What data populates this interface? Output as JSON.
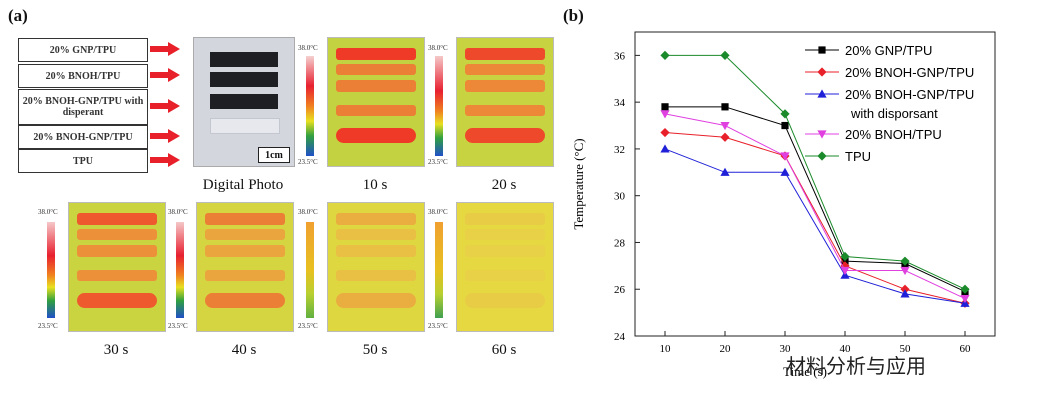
{
  "panel_a": {
    "label": "(a)",
    "sample_labels": [
      "20% GNP/TPU",
      "20% BNOH/TPU",
      "20% BNOH-GNP/TPU with disperant",
      "20% BNOH-GNP/TPU",
      "TPU"
    ],
    "photo_caption": "Digital Photo",
    "scale_bar": "1cm",
    "colorbar_max": "38.0°C",
    "colorbar_min": "23.5°C",
    "frames": [
      {
        "caption": "10 s",
        "level": 1.0
      },
      {
        "caption": "20 s",
        "level": 0.9
      },
      {
        "caption": "30 s",
        "level": 0.8
      },
      {
        "caption": "40 s",
        "level": 0.55
      },
      {
        "caption": "50 s",
        "level": 0.25
      },
      {
        "caption": "60 s",
        "level": 0.05
      }
    ]
  },
  "panel_b": {
    "label": "(b)"
  },
  "watermark": "材料分析与应用",
  "chart_data": {
    "type": "line",
    "title": "",
    "xlabel": "Time (s)",
    "ylabel": "Temperature (°C)",
    "x": [
      10,
      20,
      30,
      40,
      50,
      60
    ],
    "xticks": [
      10,
      20,
      30,
      40,
      50,
      60
    ],
    "ylim": [
      24,
      37
    ],
    "yticks": [
      24,
      26,
      28,
      30,
      32,
      34,
      36
    ],
    "grid": false,
    "legend_position": "top-right",
    "series": [
      {
        "name": "20% GNP/TPU",
        "color": "#000000",
        "marker": "square",
        "values": [
          33.8,
          33.8,
          33.0,
          27.2,
          27.1,
          25.9
        ]
      },
      {
        "name": "20% BNOH-GNP/TPU",
        "color": "#e8202a",
        "marker": "diamond",
        "values": [
          32.7,
          32.5,
          31.7,
          27.0,
          26.0,
          25.4
        ]
      },
      {
        "name": "20% BNOH-GNP/TPU with disporsant",
        "color": "#2020d8",
        "marker": "triangle-up",
        "values": [
          32.0,
          31.0,
          31.0,
          26.6,
          25.8,
          25.4
        ]
      },
      {
        "name": "20% BNOH/TPU",
        "color": "#e040e0",
        "marker": "triangle-down",
        "values": [
          33.5,
          33.0,
          31.7,
          26.8,
          26.8,
          25.6
        ]
      },
      {
        "name": "TPU",
        "color": "#1a8a2a",
        "marker": "diamond",
        "values": [
          36.0,
          36.0,
          33.5,
          27.4,
          27.2,
          26.0
        ]
      }
    ]
  }
}
